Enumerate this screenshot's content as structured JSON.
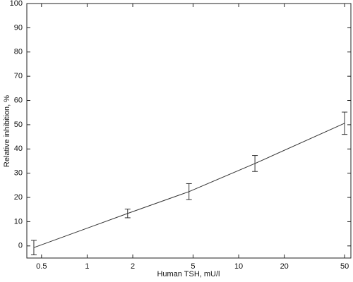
{
  "chart_data": {
    "type": "line",
    "x_label": "Human TSH, mU/l",
    "y_label": "Relative inhibition, %",
    "x_scale": "log",
    "x": [
      0.445,
      1.85,
      4.7,
      12.8,
      50
    ],
    "series": [
      {
        "color": "#333333",
        "values": [
          -0.7,
          13.4,
          22.4,
          34,
          50.6
        ],
        "errors": [
          3,
          1.8,
          3.3,
          3.3,
          4.6
        ]
      }
    ],
    "xlim": [
      0.4,
      55
    ],
    "xticks": [
      0.5,
      1,
      2,
      5,
      10,
      20,
      50
    ],
    "ylim": [
      -5,
      100
    ],
    "yticks": [
      0,
      10,
      20,
      30,
      40,
      50,
      60,
      70,
      80,
      90,
      100
    ],
    "grid": false
  }
}
